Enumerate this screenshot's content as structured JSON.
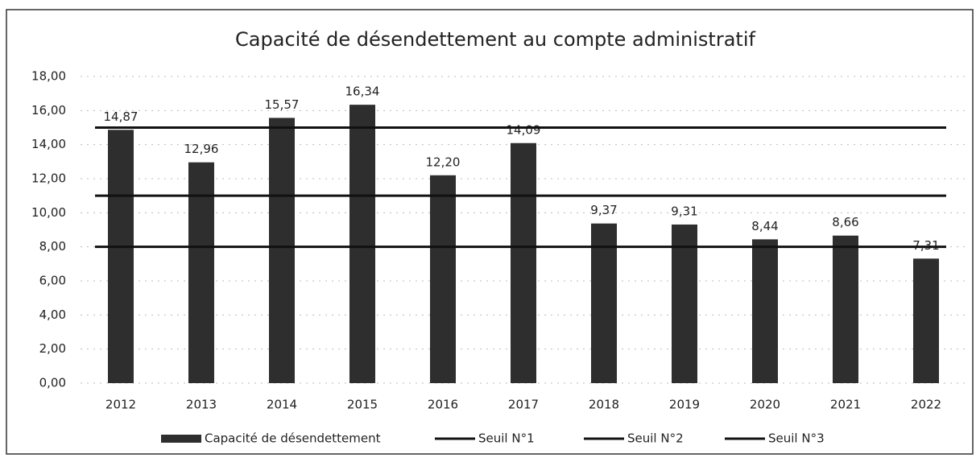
{
  "chart_data": {
    "type": "bar",
    "title": "Capacité de désendettement au compte administratif",
    "categories": [
      "2012",
      "2013",
      "2014",
      "2015",
      "2016",
      "2017",
      "2018",
      "2019",
      "2020",
      "2021",
      "2022"
    ],
    "series": [
      {
        "name": "Capacité de désendettement",
        "type": "bar",
        "color": "#2e2e2e",
        "values": [
          14.87,
          12.96,
          15.57,
          16.34,
          12.2,
          14.09,
          9.37,
          9.31,
          8.44,
          8.66,
          7.31
        ],
        "value_labels": [
          "14,87",
          "12,96",
          "15,57",
          "16,34",
          "12,20",
          "14,09",
          "9,37",
          "9,31",
          "8,44",
          "8,66",
          "7,31"
        ]
      },
      {
        "name": "Seuil N°1",
        "type": "line",
        "color": "#111111",
        "values": [
          8,
          8,
          8,
          8,
          8,
          8,
          8,
          8,
          8,
          8,
          8
        ]
      },
      {
        "name": "Seuil N°2",
        "type": "line",
        "color": "#111111",
        "values": [
          11,
          11,
          11,
          11,
          11,
          11,
          11,
          11,
          11,
          11,
          11
        ]
      },
      {
        "name": "Seuil N°3",
        "type": "line",
        "color": "#111111",
        "values": [
          15,
          15,
          15,
          15,
          15,
          15,
          15,
          15,
          15,
          15,
          15
        ]
      }
    ],
    "ylim": [
      0,
      18
    ],
    "yticks": [
      {
        "value": 0,
        "label": "0,00"
      },
      {
        "value": 2,
        "label": "2,00"
      },
      {
        "value": 4,
        "label": "4,00"
      },
      {
        "value": 6,
        "label": "6,00"
      },
      {
        "value": 8,
        "label": "8,00"
      },
      {
        "value": 10,
        "label": "10,00"
      },
      {
        "value": 12,
        "label": "12,00"
      },
      {
        "value": 14,
        "label": "14,00"
      },
      {
        "value": 16,
        "label": "16,00"
      },
      {
        "value": 18,
        "label": "18,00"
      }
    ],
    "grid": true,
    "legend": "bottom"
  }
}
